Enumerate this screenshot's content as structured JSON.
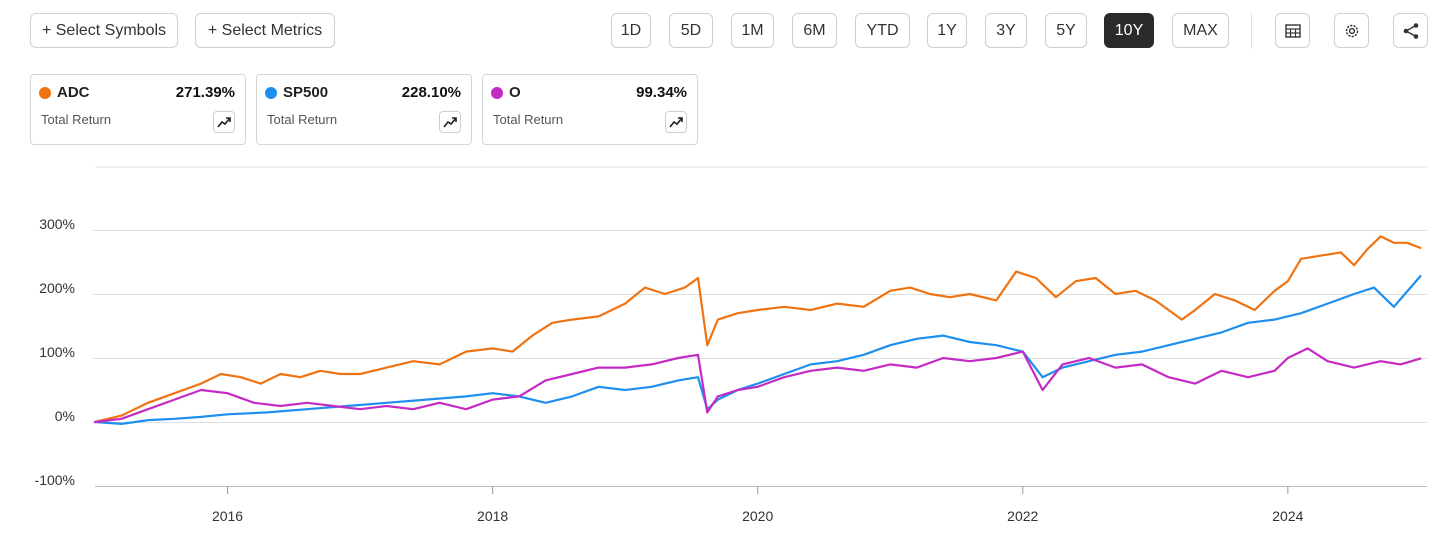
{
  "toolbar": {
    "select_symbols": "+ Select Symbols",
    "select_metrics": "+ Select Metrics",
    "ranges": [
      "1D",
      "5D",
      "1M",
      "6M",
      "YTD",
      "1Y",
      "3Y",
      "5Y",
      "10Y",
      "MAX"
    ],
    "active_range": "10Y",
    "icons": [
      "table-icon",
      "gear-icon",
      "share-icon"
    ]
  },
  "legend": [
    {
      "symbol": "ADC",
      "value": "271.39%",
      "metric": "Total Return",
      "color": "#f07312"
    },
    {
      "symbol": "SP500",
      "value": "228.10%",
      "metric": "Total Return",
      "color": "#1f8fee"
    },
    {
      "symbol": "O",
      "value": "99.34%",
      "metric": "Total Return",
      "color": "#c42bc4"
    }
  ],
  "chart_data": {
    "type": "line",
    "title": "",
    "xlabel": "",
    "ylabel": "",
    "x_ticks": [
      "2016",
      "2018",
      "2020",
      "2022",
      "2024"
    ],
    "y_ticks": [
      "300%",
      "200%",
      "100%",
      "0%",
      "-100%"
    ],
    "ylim": [
      -100,
      300
    ],
    "xlim": [
      2015.0,
      2025.05
    ],
    "grid": true,
    "series": [
      {
        "name": "ADC",
        "color": "#f07312",
        "x": [
          2015.0,
          2015.2,
          2015.4,
          2015.6,
          2015.8,
          2015.95,
          2016.1,
          2016.25,
          2016.4,
          2016.55,
          2016.7,
          2016.85,
          2017.0,
          2017.2,
          2017.4,
          2017.6,
          2017.8,
          2018.0,
          2018.15,
          2018.3,
          2018.45,
          2018.6,
          2018.8,
          2019.0,
          2019.15,
          2019.3,
          2019.45,
          2019.55,
          2019.62,
          2019.7,
          2019.85,
          2020.0,
          2020.2,
          2020.4,
          2020.6,
          2020.8,
          2021.0,
          2021.15,
          2021.3,
          2021.45,
          2021.6,
          2021.8,
          2021.95,
          2022.1,
          2022.25,
          2022.4,
          2022.55,
          2022.7,
          2022.85,
          2023.0,
          2023.2,
          2023.3,
          2023.45,
          2023.6,
          2023.75,
          2023.9,
          2024.0,
          2024.1,
          2024.25,
          2024.4,
          2024.5,
          2024.6,
          2024.7,
          2024.8,
          2024.9,
          2025.0
        ],
        "y": [
          0,
          10,
          30,
          45,
          60,
          75,
          70,
          60,
          75,
          70,
          80,
          75,
          75,
          85,
          95,
          90,
          110,
          115,
          110,
          135,
          155,
          160,
          165,
          185,
          210,
          200,
          210,
          225,
          120,
          160,
          170,
          175,
          180,
          175,
          185,
          180,
          205,
          210,
          200,
          195,
          200,
          190,
          235,
          225,
          195,
          220,
          225,
          200,
          205,
          190,
          160,
          175,
          200,
          190,
          175,
          205,
          220,
          255,
          260,
          265,
          245,
          270,
          290,
          280,
          280,
          272
        ]
      },
      {
        "name": "SP500",
        "color": "#1f8fee",
        "x": [
          2015.0,
          2015.2,
          2015.4,
          2015.6,
          2015.8,
          2016.0,
          2016.3,
          2016.6,
          2016.9,
          2017.2,
          2017.5,
          2017.8,
          2018.0,
          2018.2,
          2018.4,
          2018.6,
          2018.8,
          2019.0,
          2019.2,
          2019.4,
          2019.55,
          2019.62,
          2019.7,
          2019.85,
          2020.0,
          2020.2,
          2020.4,
          2020.6,
          2020.8,
          2021.0,
          2021.2,
          2021.4,
          2021.6,
          2021.8,
          2022.0,
          2022.15,
          2022.3,
          2022.5,
          2022.7,
          2022.9,
          2023.1,
          2023.3,
          2023.5,
          2023.7,
          2023.9,
          2024.1,
          2024.3,
          2024.5,
          2024.65,
          2024.8,
          2025.0
        ],
        "y": [
          0,
          -3,
          3,
          5,
          8,
          12,
          15,
          20,
          25,
          30,
          35,
          40,
          45,
          40,
          30,
          40,
          55,
          50,
          55,
          65,
          70,
          20,
          35,
          50,
          60,
          75,
          90,
          95,
          105,
          120,
          130,
          135,
          125,
          120,
          110,
          70,
          85,
          95,
          105,
          110,
          120,
          130,
          140,
          155,
          160,
          170,
          185,
          200,
          210,
          180,
          228
        ]
      },
      {
        "name": "O",
        "color": "#c42bc4",
        "x": [
          2015.0,
          2015.2,
          2015.4,
          2015.6,
          2015.8,
          2016.0,
          2016.2,
          2016.4,
          2016.6,
          2016.8,
          2017.0,
          2017.2,
          2017.4,
          2017.6,
          2017.8,
          2018.0,
          2018.2,
          2018.4,
          2018.6,
          2018.8,
          2019.0,
          2019.2,
          2019.4,
          2019.55,
          2019.62,
          2019.7,
          2019.85,
          2020.0,
          2020.2,
          2020.4,
          2020.6,
          2020.8,
          2021.0,
          2021.2,
          2021.4,
          2021.6,
          2021.8,
          2022.0,
          2022.15,
          2022.3,
          2022.5,
          2022.7,
          2022.9,
          2023.1,
          2023.3,
          2023.5,
          2023.7,
          2023.9,
          2024.0,
          2024.15,
          2024.3,
          2024.5,
          2024.7,
          2024.85,
          2025.0
        ],
        "y": [
          0,
          5,
          20,
          35,
          50,
          45,
          30,
          25,
          30,
          25,
          20,
          25,
          20,
          30,
          20,
          35,
          40,
          65,
          75,
          85,
          85,
          90,
          100,
          105,
          15,
          40,
          50,
          55,
          70,
          80,
          85,
          80,
          90,
          85,
          100,
          95,
          100,
          110,
          50,
          90,
          100,
          85,
          90,
          70,
          60,
          80,
          70,
          80,
          100,
          115,
          95,
          85,
          95,
          90,
          99
        ]
      }
    ]
  }
}
